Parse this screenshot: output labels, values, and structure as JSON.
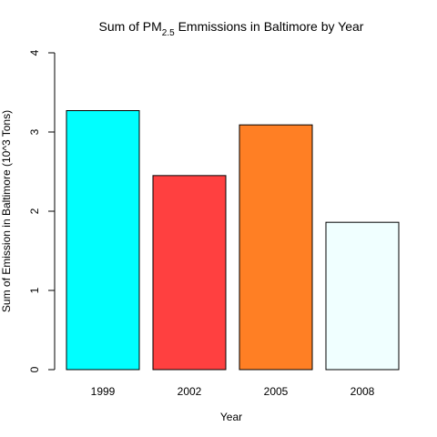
{
  "chart_data": {
    "type": "bar",
    "title_parts": {
      "before": "Sum of PM",
      "subscript": "2.5",
      "after": " Emmissions in Baltimore by Year"
    },
    "xlabel": "Year",
    "ylabel": "Sum of Emission in Baltimore (10^3 Tons)",
    "categories": [
      "1999",
      "2002",
      "2005",
      "2008"
    ],
    "values": [
      3.27,
      2.45,
      3.09,
      1.86
    ],
    "colors": [
      "#00ffff",
      "#ff4040",
      "#ff7f24",
      "#f0ffff"
    ],
    "ylim": [
      0,
      4
    ],
    "yticks": [
      "0",
      "1",
      "2",
      "3",
      "4"
    ],
    "grid": false,
    "legend": "none"
  }
}
